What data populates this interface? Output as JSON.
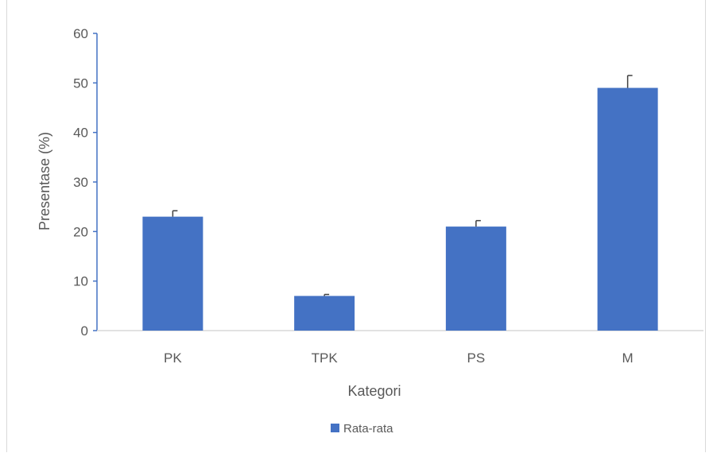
{
  "chart_data": {
    "type": "bar",
    "title": "",
    "xlabel": "Kategori",
    "ylabel": "Presentase (%)",
    "ylim": [
      0,
      60
    ],
    "yticks": [
      0,
      10,
      20,
      30,
      40,
      50,
      60
    ],
    "categories": [
      "PK",
      "TPK",
      "PS",
      "M"
    ],
    "series": [
      {
        "name": "Rata-rata",
        "values": [
          23,
          7,
          21,
          49
        ],
        "error_plus": [
          1.2,
          0.3,
          1.2,
          2.5
        ]
      }
    ],
    "legend_position": "bottom",
    "grid": false
  },
  "colors": {
    "bar": "#4472c4",
    "axis": "#4472c4",
    "text": "#595959",
    "error": "#404040"
  }
}
